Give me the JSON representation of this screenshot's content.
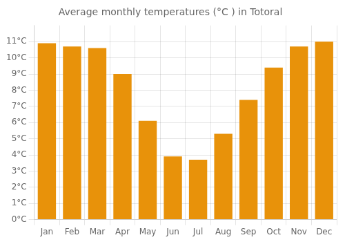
{
  "chart_data": {
    "type": "bar",
    "title": "Average monthly temperatures (°C ) in Totoral",
    "categories": [
      "Jan",
      "Feb",
      "Mar",
      "Apr",
      "May",
      "Jun",
      "Jul",
      "Aug",
      "Sep",
      "Oct",
      "Nov",
      "Dec"
    ],
    "values": [
      10.9,
      10.7,
      10.6,
      9.0,
      6.1,
      3.9,
      3.7,
      5.3,
      7.4,
      9.4,
      10.7,
      11.0
    ],
    "color": "#E8920A",
    "ylim": [
      0,
      12
    ],
    "yticks": [
      {
        "value": 0,
        "label": "0°C"
      },
      {
        "value": 1,
        "label": "1°C"
      },
      {
        "value": 2,
        "label": "2°C"
      },
      {
        "value": 3,
        "label": "3°C"
      },
      {
        "value": 4,
        "label": "4°C"
      },
      {
        "value": 5,
        "label": "5°C"
      },
      {
        "value": 6,
        "label": "6°C"
      },
      {
        "value": 7,
        "label": "7°C"
      },
      {
        "value": 8,
        "label": "8°C"
      },
      {
        "value": 9,
        "label": "9°C"
      },
      {
        "value": 10,
        "label": "10°C"
      },
      {
        "value": 11,
        "label": "11°C"
      }
    ],
    "grid": true
  }
}
